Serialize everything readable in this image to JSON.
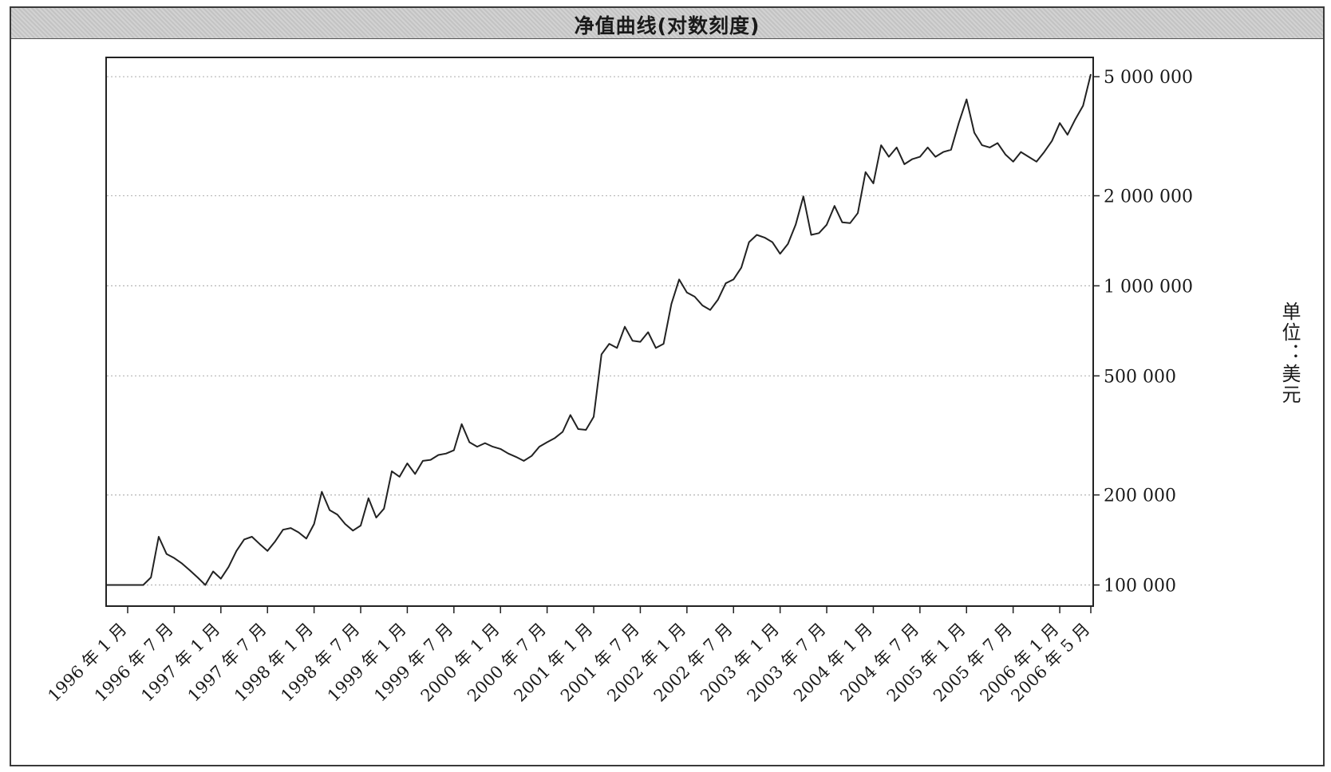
{
  "chart_data": {
    "type": "line",
    "title": "净值曲线(对数刻度)",
    "ylabel": "单位：美元",
    "xlabel": "",
    "yscale": "log",
    "ylim": [
      85000,
      5800000
    ],
    "xlim": [
      "1996-01",
      "2006-05"
    ],
    "grid": true,
    "y_ticks": [
      {
        "value": 100000,
        "label": "100 000"
      },
      {
        "value": 200000,
        "label": "200 000"
      },
      {
        "value": 500000,
        "label": "500 000"
      },
      {
        "value": 1000000,
        "label": "1 000 000"
      },
      {
        "value": 2000000,
        "label": "2 000 000"
      },
      {
        "value": 5000000,
        "label": "5 000 000"
      }
    ],
    "x_ticks": [
      {
        "value": "1996-01",
        "label": "1996 年 1 月"
      },
      {
        "value": "1996-07",
        "label": "1996 年 7 月"
      },
      {
        "value": "1997-01",
        "label": "1997 年 1 月"
      },
      {
        "value": "1997-07",
        "label": "1997 年 7 月"
      },
      {
        "value": "1998-01",
        "label": "1998 年 1 月"
      },
      {
        "value": "1998-07",
        "label": "1998 年 7 月"
      },
      {
        "value": "1999-01",
        "label": "1999 年 1 月"
      },
      {
        "value": "1999-07",
        "label": "1999 年 7 月"
      },
      {
        "value": "2000-01",
        "label": "2000 年 1 月"
      },
      {
        "value": "2000-07",
        "label": "2000 年 7 月"
      },
      {
        "value": "2001-01",
        "label": "2001 年 1 月"
      },
      {
        "value": "2001-07",
        "label": "2001 年 7 月"
      },
      {
        "value": "2002-01",
        "label": "2002 年 1 月"
      },
      {
        "value": "2002-07",
        "label": "2002 年 7 月"
      },
      {
        "value": "2003-01",
        "label": "2003 年 1 月"
      },
      {
        "value": "2003-07",
        "label": "2003 年 7 月"
      },
      {
        "value": "2004-01",
        "label": "2004 年 1 月"
      },
      {
        "value": "2004-07",
        "label": "2004 年 7 月"
      },
      {
        "value": "2005-01",
        "label": "2005 年 1 月"
      },
      {
        "value": "2005-07",
        "label": "2005 年 7 月"
      },
      {
        "value": "2006-01",
        "label": "2006 年 1 月"
      },
      {
        "value": "2006-05",
        "label": "2006 年 5 月"
      }
    ],
    "series": [
      {
        "color": "#222222",
        "x": [
          "1996-01",
          "1996-02",
          "1996-03",
          "1996-04",
          "1996-05",
          "1996-06",
          "1996-07",
          "1996-08",
          "1996-09",
          "1996-10",
          "1996-11",
          "1996-12",
          "1997-01",
          "1997-02",
          "1997-03",
          "1997-04",
          "1997-05",
          "1997-06",
          "1997-07",
          "1997-08",
          "1997-09",
          "1997-10",
          "1997-11",
          "1997-12",
          "1998-01",
          "1998-02",
          "1998-03",
          "1998-04",
          "1998-05",
          "1998-06",
          "1998-07",
          "1998-08",
          "1998-09",
          "1998-10",
          "1998-11",
          "1998-12",
          "1999-01",
          "1999-02",
          "1999-03",
          "1999-04",
          "1999-05",
          "1999-06",
          "1999-07",
          "1999-08",
          "1999-09",
          "1999-10",
          "1999-11",
          "1999-12",
          "2000-01",
          "2000-02",
          "2000-03",
          "2000-04",
          "2000-05",
          "2000-06",
          "2000-07",
          "2000-08",
          "2000-09",
          "2000-10",
          "2000-11",
          "2000-12",
          "2001-01",
          "2001-02",
          "2001-03",
          "2001-04",
          "2001-05",
          "2001-06",
          "2001-07",
          "2001-08",
          "2001-09",
          "2001-10",
          "2001-11",
          "2001-12",
          "2002-01",
          "2002-02",
          "2002-03",
          "2002-04",
          "2002-05",
          "2002-06",
          "2002-07",
          "2002-08",
          "2002-09",
          "2002-10",
          "2002-11",
          "2002-12",
          "2003-01",
          "2003-02",
          "2003-03",
          "2003-04",
          "2003-05",
          "2003-06",
          "2003-07",
          "2003-08",
          "2003-09",
          "2003-10",
          "2003-11",
          "2003-12",
          "2004-01",
          "2004-02",
          "2004-03",
          "2004-04",
          "2004-05",
          "2004-06",
          "2004-07",
          "2004-08",
          "2004-09",
          "2004-10",
          "2004-11",
          "2004-12",
          "2005-01",
          "2005-02",
          "2005-03",
          "2005-04",
          "2005-05",
          "2005-06",
          "2005-07",
          "2005-08",
          "2005-09",
          "2005-10",
          "2005-11",
          "2005-12",
          "2006-01",
          "2006-02",
          "2006-03",
          "2006-04",
          "2006-05"
        ],
        "values": [
          100000,
          100000,
          100000,
          106000,
          145000,
          127000,
          123000,
          118000,
          112000,
          106000,
          100000,
          111000,
          105000,
          115000,
          130000,
          142000,
          145000,
          137000,
          130000,
          140000,
          153000,
          155000,
          150000,
          143000,
          160000,
          205000,
          178000,
          172000,
          160000,
          152000,
          158000,
          195000,
          168000,
          180000,
          240000,
          230000,
          255000,
          235000,
          260000,
          262000,
          272000,
          275000,
          282000,
          345000,
          300000,
          290000,
          298000,
          290000,
          285000,
          275000,
          268000,
          260000,
          270000,
          290000,
          300000,
          310000,
          325000,
          370000,
          332000,
          330000,
          365000,
          590000,
          640000,
          620000,
          730000,
          655000,
          650000,
          700000,
          620000,
          640000,
          870000,
          1050000,
          950000,
          920000,
          860000,
          830000,
          900000,
          1020000,
          1050000,
          1150000,
          1400000,
          1480000,
          1450000,
          1400000,
          1280000,
          1380000,
          1600000,
          1990000,
          1480000,
          1500000,
          1600000,
          1850000,
          1630000,
          1620000,
          1750000,
          2400000,
          2200000,
          2950000,
          2700000,
          2900000,
          2550000,
          2650000,
          2700000,
          2900000,
          2700000,
          2800000,
          2850000,
          3500000,
          4200000,
          3250000,
          2950000,
          2900000,
          3000000,
          2750000,
          2600000,
          2800000,
          2700000,
          2600000,
          2800000,
          3050000,
          3500000,
          3200000,
          3600000,
          4000000,
          5100000
        ]
      }
    ]
  }
}
